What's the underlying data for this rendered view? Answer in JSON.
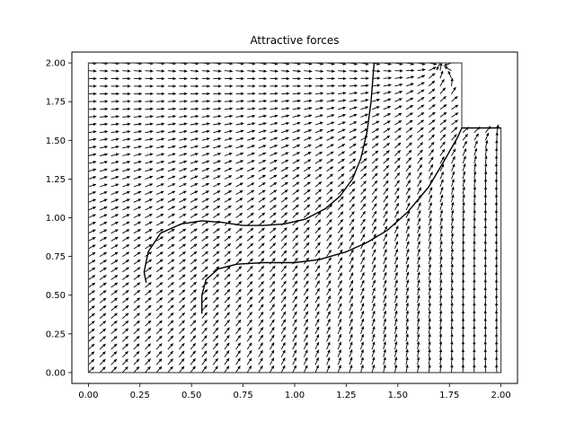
{
  "chart_data": {
    "type": "quiver",
    "title": "Attractive forces",
    "xlabel": "",
    "ylabel": "",
    "xlim": [
      -0.08,
      2.08
    ],
    "ylim": [
      -0.07,
      2.07
    ],
    "grid": false,
    "x_ticks": [
      "0.00",
      "0.25",
      "0.50",
      "0.75",
      "1.00",
      "1.25",
      "1.50",
      "1.75",
      "2.00"
    ],
    "y_ticks": [
      "0.00",
      "0.25",
      "0.50",
      "0.75",
      "1.00",
      "1.25",
      "1.50",
      "1.75",
      "2.00"
    ],
    "boundary": [
      [
        0,
        0
      ],
      [
        2,
        0
      ],
      [
        2,
        1.58
      ],
      [
        1.81,
        1.58
      ],
      [
        1.81,
        2
      ],
      [
        0,
        2
      ],
      [
        0,
        0
      ]
    ],
    "trajectories": [
      {
        "points": [
          [
            0.28,
            0.58
          ],
          [
            0.27,
            0.65
          ],
          [
            0.29,
            0.78
          ],
          [
            0.35,
            0.9
          ],
          [
            0.45,
            0.96
          ],
          [
            0.55,
            0.98
          ],
          [
            0.65,
            0.97
          ],
          [
            0.75,
            0.95
          ],
          [
            0.85,
            0.95
          ],
          [
            0.95,
            0.96
          ],
          [
            1.05,
            0.99
          ],
          [
            1.15,
            1.06
          ],
          [
            1.22,
            1.14
          ],
          [
            1.28,
            1.25
          ],
          [
            1.32,
            1.38
          ],
          [
            1.35,
            1.55
          ],
          [
            1.37,
            1.75
          ],
          [
            1.385,
            2.0
          ]
        ]
      },
      {
        "points": [
          [
            0.55,
            0.38
          ],
          [
            0.55,
            0.5
          ],
          [
            0.57,
            0.6
          ],
          [
            0.63,
            0.67
          ],
          [
            0.72,
            0.7
          ],
          [
            0.85,
            0.71
          ],
          [
            1.0,
            0.71
          ],
          [
            1.12,
            0.73
          ],
          [
            1.25,
            0.78
          ],
          [
            1.35,
            0.84
          ],
          [
            1.45,
            0.92
          ],
          [
            1.55,
            1.04
          ],
          [
            1.65,
            1.2
          ],
          [
            1.73,
            1.38
          ],
          [
            1.79,
            1.52
          ],
          [
            1.81,
            1.58
          ],
          [
            2.0,
            1.58
          ]
        ]
      }
    ],
    "vector_field": {
      "x_start": 0.0,
      "x_end": 1.98,
      "nx": 37,
      "y_start": 0.0,
      "y_end": 2.0,
      "ny": 41,
      "attractors": [
        [
          1.7,
          2.0
        ],
        [
          2.0,
          1.6
        ]
      ],
      "description": "unit arrows pointing toward the goal region at upper right"
    }
  }
}
